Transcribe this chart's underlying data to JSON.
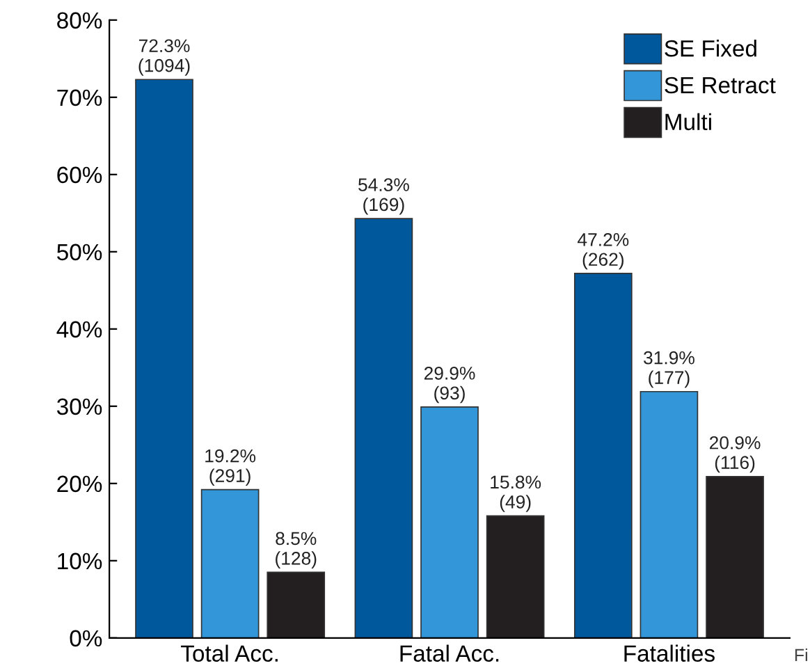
{
  "chart_data": {
    "type": "bar",
    "categories": [
      "Total Acc.",
      "Fatal Acc.",
      "Fatalities"
    ],
    "series": [
      {
        "name": "SE Fixed",
        "color": "#00589c",
        "values": [
          72.3,
          54.3,
          47.2
        ],
        "value_labels": [
          "72.3%\n(1094)",
          "54.3%\n(169)",
          "47.2%\n(262)"
        ]
      },
      {
        "name": "SE Retract",
        "color": "#3396d8",
        "values": [
          19.2,
          29.9,
          31.9
        ],
        "value_labels": [
          "19.2%\n(291)",
          "29.9%\n(93)",
          "31.9%\n(177)"
        ]
      },
      {
        "name": "Multi",
        "color": "#231f20",
        "values": [
          8.5,
          15.8,
          20.9
        ],
        "value_labels": [
          "8.5%\n(128)",
          "15.8%\n(49)",
          "20.9%\n(116)"
        ]
      }
    ],
    "ylim": [
      0,
      80
    ],
    "yticks": [
      {
        "value": 0,
        "label": "0%"
      },
      {
        "value": 10,
        "label": "10%"
      },
      {
        "value": 20,
        "label": "20%"
      },
      {
        "value": 30,
        "label": "30%"
      },
      {
        "value": 40,
        "label": "40%"
      },
      {
        "value": 50,
        "label": "50%"
      },
      {
        "value": 60,
        "label": "60%"
      },
      {
        "value": 70,
        "label": "70%"
      },
      {
        "value": 80,
        "label": "80%"
      }
    ],
    "legend": "top right",
    "grid": false,
    "annotations": [
      "Fi"
    ]
  }
}
